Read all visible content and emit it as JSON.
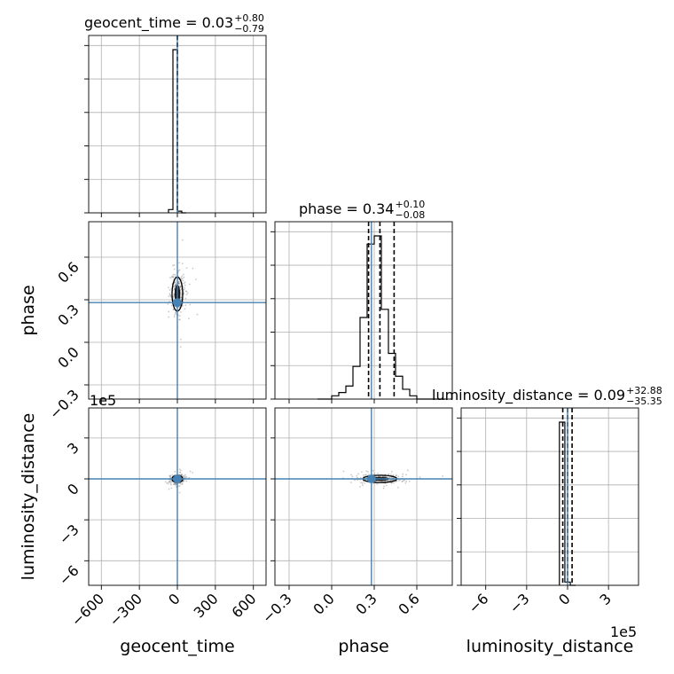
{
  "chart_data": {
    "type": "corner",
    "parameters": [
      "geocent_time",
      "phase",
      "luminosity_distance"
    ],
    "truths": {
      "geocent_time": 0.0,
      "phase": 0.28,
      "luminosity_distance": 0.0
    },
    "truth_color": "#4682b4",
    "titles": [
      {
        "param": "geocent_time",
        "text": "geocent_time = 0.03",
        "plus": "+0.80",
        "minus": "−0.79"
      },
      {
        "param": "phase",
        "text": "phase = 0.34",
        "plus": "+0.10",
        "minus": "−0.08"
      },
      {
        "param": "luminosity_distance",
        "text": "luminosity_distance = 0.09",
        "plus": "+32.88",
        "minus": "−35.35"
      }
    ],
    "quantile_lines": {
      "phase": [
        0.26,
        0.34,
        0.44
      ],
      "geocent_time": [
        -0.76,
        0.03,
        0.83
      ],
      "luminosity_distance": [
        -35.26,
        0.09,
        32.97
      ]
    },
    "offset_text": "1e5",
    "axes": {
      "geocent_time": {
        "lim": [
          -700,
          700
        ],
        "ticks": [
          "−600",
          "−300",
          "0",
          "300",
          "600"
        ],
        "tick_values": [
          -600,
          -300,
          0,
          300,
          600
        ]
      },
      "phase": {
        "lim": [
          -0.4,
          0.85
        ],
        "ticks": [
          "−0.3",
          "0.0",
          "0.3",
          "0.6"
        ],
        "tick_values": [
          -0.3,
          0.0,
          0.3,
          0.6
        ]
      },
      "luminosity_distance": {
        "lim": [
          -7.8,
          5.2
        ],
        "ticks": [
          "−6",
          "−3",
          "0",
          "3"
        ],
        "tick_values": [
          -6,
          -3,
          0,
          3
        ],
        "unit_scale": "1e5"
      }
    },
    "histograms": {
      "geocent_time": {
        "bins": [
          -70,
          -35,
          0,
          35,
          70
        ],
        "counts": [
          0.02,
          1.0,
          0.01,
          0.0
        ]
      },
      "phase": {
        "bins": [
          -0.1,
          -0.05,
          0.0,
          0.05,
          0.1,
          0.15,
          0.2,
          0.25,
          0.3,
          0.35,
          0.4,
          0.45,
          0.5,
          0.55,
          0.6,
          0.65,
          0.7,
          0.75,
          0.8
        ],
        "counts": [
          0.0,
          0.0,
          0.02,
          0.04,
          0.08,
          0.2,
          0.5,
          0.95,
          1.0,
          0.55,
          0.28,
          0.14,
          0.06,
          0.02,
          0.0,
          0.0,
          0.0,
          0.0
        ]
      },
      "luminosity_distance": {
        "bins": [
          -0.6,
          -0.2,
          0.2,
          0.6
        ],
        "counts": [
          1.0,
          0.02,
          0.0
        ]
      }
    },
    "grid": true
  }
}
